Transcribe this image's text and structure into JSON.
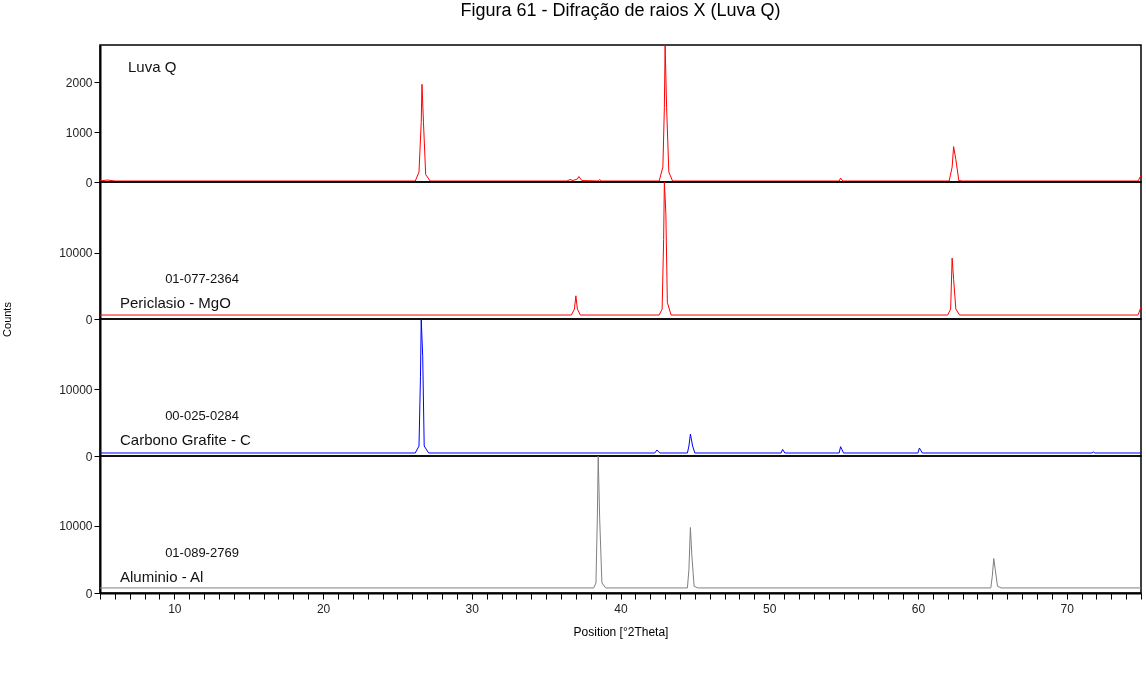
{
  "chart_data": [
    {
      "type": "line",
      "title": "Figura 61 - Difração de raios X (Luva Q)",
      "xlim": [
        5,
        75
      ],
      "ylim": [
        0,
        2750
      ],
      "yticks": [
        0,
        1000,
        2000
      ],
      "tick_labels": "y",
      "legend": false,
      "grid": false,
      "series": [
        {
          "name": "Luva Q",
          "color": "#ff0000",
          "x": [
            5,
            5.5,
            6,
            26.2,
            26.45,
            26.6,
            26.65,
            26.75,
            26.9,
            27.2,
            36.4,
            36.6,
            36.8,
            37.1,
            37.2,
            37.4,
            38.5,
            38.6,
            38.7,
            42.6,
            42.85,
            42.95,
            43.0,
            43.1,
            43.25,
            43.5,
            54.7,
            54.8,
            54.95,
            62.1,
            62.3,
            62.4,
            62.55,
            62.75,
            63.0,
            74.8,
            75
          ],
          "values": [
            20,
            40,
            20,
            20,
            200,
            1200,
            1960,
            1200,
            150,
            20,
            20,
            50,
            30,
            60,
            110,
            30,
            20,
            50,
            20,
            20,
            300,
            1500,
            2750,
            1500,
            200,
            20,
            20,
            80,
            20,
            20,
            300,
            710,
            450,
            30,
            20,
            20,
            130
          ]
        }
      ]
    },
    {
      "type": "line",
      "xlim": [
        5,
        75
      ],
      "ylim": [
        0,
        20700
      ],
      "yticks": [
        0,
        10000
      ],
      "ylabel": "Counts",
      "tick_labels": "y",
      "legend": false,
      "grid": false,
      "annotations": [
        "01-077-2364"
      ],
      "series": [
        {
          "name": "Periclasio - MgO",
          "color": "#ff0000",
          "x": [
            5,
            36.7,
            36.9,
            37.0,
            37.1,
            37.3,
            42.6,
            42.8,
            42.9,
            42.95,
            43.05,
            43.15,
            43.4,
            62.0,
            62.2,
            62.3,
            62.4,
            62.55,
            62.8,
            74.8,
            75
          ],
          "values": [
            600,
            600,
            1500,
            3500,
            1500,
            600,
            600,
            1500,
            12000,
            20700,
            16000,
            2500,
            600,
            600,
            1500,
            9200,
            6000,
            1500,
            600,
            600,
            1800
          ]
        }
      ]
    },
    {
      "type": "line",
      "xlim": [
        5,
        75
      ],
      "ylim": [
        0,
        20600
      ],
      "yticks": [
        0,
        10000
      ],
      "tick_labels": "y",
      "legend": false,
      "grid": false,
      "annotations": [
        "00-025-0284"
      ],
      "series": [
        {
          "name": "Carbono Grafite - C",
          "color": "#0000ff",
          "x": [
            5,
            26.2,
            26.45,
            26.55,
            26.6,
            26.7,
            26.8,
            27.1,
            42.3,
            42.45,
            42.65,
            44.5,
            44.6,
            44.7,
            44.85,
            45.0,
            50.8,
            50.9,
            51.05,
            54.7,
            54.8,
            55.0,
            60.0,
            60.1,
            60.3,
            71.7,
            71.8,
            71.9,
            75
          ],
          "values": [
            450,
            450,
            1500,
            12000,
            20600,
            15000,
            1500,
            450,
            450,
            900,
            450,
            450,
            1500,
            3300,
            1500,
            450,
            450,
            1000,
            450,
            450,
            1400,
            450,
            450,
            1200,
            450,
            450,
            600,
            450,
            450
          ]
        }
      ]
    },
    {
      "type": "line",
      "xlim": [
        5,
        75
      ],
      "ylim": [
        0,
        20300
      ],
      "yticks": [
        0,
        10000
      ],
      "xlabel": "Position [°2Theta]",
      "legend": false,
      "grid": false,
      "annotations": [
        "01-089-2769"
      ],
      "xticks": [
        {
          "value": 5,
          "label": null
        },
        {
          "value": 6,
          "label": null
        },
        {
          "value": 7,
          "label": null
        },
        {
          "value": 8,
          "label": null
        },
        {
          "value": 9,
          "label": null
        },
        10,
        {
          "value": 11,
          "label": null
        },
        {
          "value": 12,
          "label": null
        },
        {
          "value": 13,
          "label": null
        },
        {
          "value": 14,
          "label": null
        },
        {
          "value": 15,
          "label": null
        },
        {
          "value": 16,
          "label": null
        },
        {
          "value": 17,
          "label": null
        },
        {
          "value": 18,
          "label": null
        },
        {
          "value": 19,
          "label": null
        },
        20,
        {
          "value": 21,
          "label": null
        },
        {
          "value": 22,
          "label": null
        },
        {
          "value": 23,
          "label": null
        },
        {
          "value": 24,
          "label": null
        },
        {
          "value": 25,
          "label": null
        },
        {
          "value": 26,
          "label": null
        },
        {
          "value": 27,
          "label": null
        },
        {
          "value": 28,
          "label": null
        },
        {
          "value": 29,
          "label": null
        },
        30,
        {
          "value": 31,
          "label": null
        },
        {
          "value": 32,
          "label": null
        },
        {
          "value": 33,
          "label": null
        },
        {
          "value": 34,
          "label": null
        },
        {
          "value": 35,
          "label": null
        },
        {
          "value": 36,
          "label": null
        },
        {
          "value": 37,
          "label": null
        },
        {
          "value": 38,
          "label": null
        },
        {
          "value": 39,
          "label": null
        },
        40,
        {
          "value": 41,
          "label": null
        },
        {
          "value": 42,
          "label": null
        },
        {
          "value": 43,
          "label": null
        },
        {
          "value": 44,
          "label": null
        },
        {
          "value": 45,
          "label": null
        },
        {
          "value": 46,
          "label": null
        },
        {
          "value": 47,
          "label": null
        },
        {
          "value": 48,
          "label": null
        },
        {
          "value": 49,
          "label": null
        },
        50,
        {
          "value": 51,
          "label": null
        },
        {
          "value": 52,
          "label": null
        },
        {
          "value": 53,
          "label": null
        },
        {
          "value": 54,
          "label": null
        },
        {
          "value": 55,
          "label": null
        },
        {
          "value": 56,
          "label": null
        },
        {
          "value": 57,
          "label": null
        },
        {
          "value": 58,
          "label": null
        },
        {
          "value": 59,
          "label": null
        },
        60,
        {
          "value": 61,
          "label": null
        },
        {
          "value": 62,
          "label": null
        },
        {
          "value": 63,
          "label": null
        },
        {
          "value": 64,
          "label": null
        },
        {
          "value": 65,
          "label": null
        },
        {
          "value": 66,
          "label": null
        },
        {
          "value": 67,
          "label": null
        },
        {
          "value": 68,
          "label": null
        },
        {
          "value": 69,
          "label": null
        },
        70,
        {
          "value": 71,
          "label": null
        },
        {
          "value": 72,
          "label": null
        },
        {
          "value": 73,
          "label": null
        },
        {
          "value": 74,
          "label": null
        },
        {
          "value": 75,
          "label": null
        }
      ],
      "series": [
        {
          "name": "Aluminio - Al",
          "color": "#808080",
          "x": [
            5,
            38.2,
            38.35,
            38.45,
            38.5,
            38.6,
            38.75,
            39.0,
            44.5,
            44.6,
            44.7,
            44.8,
            44.95,
            45.2,
            64.9,
            65.0,
            65.1,
            65.2,
            65.35,
            65.6,
            75
          ],
          "values": [
            750,
            750,
            1500,
            12000,
            20300,
            11000,
            1500,
            750,
            750,
            3500,
            9700,
            5500,
            1000,
            750,
            750,
            2500,
            5100,
            3500,
            1000,
            750,
            750
          ]
        }
      ]
    }
  ]
}
